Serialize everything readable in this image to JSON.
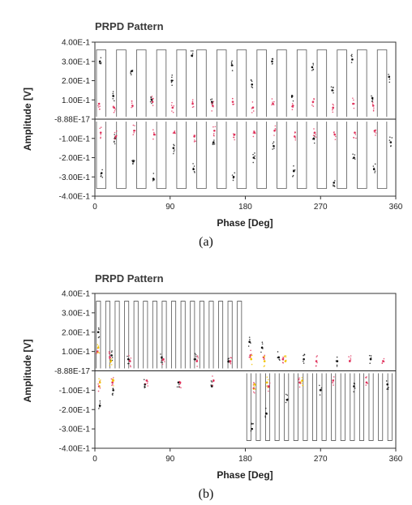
{
  "chart_data": [
    {
      "type": "scatter",
      "title": "PRPD Pattern",
      "xlabel": "Phase [Deg]",
      "ylabel": "Amplitude [V]",
      "xlim": [
        0,
        360
      ],
      "ylim": [
        -0.4,
        0.4
      ],
      "x_ticks": [
        "0",
        "90",
        "180",
        "270",
        "360"
      ],
      "y_ticks": [
        "4.00E-1",
        "3.00E-1",
        "2.00E-1",
        "1.00E-1",
        "-8.88E-17",
        "-1.00E-1",
        "-2.00E-1",
        "-3.00E-1",
        "-4.00E-1"
      ],
      "caption": "(a)",
      "series": [
        {
          "color": "#111111",
          "values": [
            [
              6,
              0.3
            ],
            [
              8,
              -0.28
            ],
            [
              22,
              0.12
            ],
            [
              24,
              -0.1
            ],
            [
              44,
              0.25
            ],
            [
              46,
              -0.22
            ],
            [
              68,
              0.1
            ],
            [
              70,
              -0.31
            ],
            [
              92,
              0.2
            ],
            [
              94,
              -0.15
            ],
            [
              116,
              0.33
            ],
            [
              118,
              -0.26
            ],
            [
              140,
              0.09
            ],
            [
              142,
              -0.12
            ],
            [
              164,
              0.28
            ],
            [
              166,
              -0.3
            ],
            [
              188,
              0.18
            ],
            [
              190,
              -0.2
            ],
            [
              212,
              0.3
            ],
            [
              214,
              -0.14
            ],
            [
              236,
              0.12
            ],
            [
              238,
              -0.27
            ],
            [
              260,
              0.27
            ],
            [
              262,
              -0.1
            ],
            [
              284,
              0.15
            ],
            [
              286,
              -0.33
            ],
            [
              308,
              0.31
            ],
            [
              310,
              -0.2
            ],
            [
              332,
              0.11
            ],
            [
              334,
              -0.26
            ],
            [
              352,
              0.22
            ],
            [
              354,
              -0.12
            ]
          ]
        },
        {
          "color": "#e0305a",
          "values": [
            [
              5,
              0.08
            ],
            [
              7,
              -0.07
            ],
            [
              23,
              0.06
            ],
            [
              25,
              -0.09
            ],
            [
              45,
              0.07
            ],
            [
              47,
              -0.06
            ],
            [
              69,
              0.09
            ],
            [
              71,
              -0.08
            ],
            [
              93,
              0.06
            ],
            [
              95,
              -0.07
            ],
            [
              117,
              0.08
            ],
            [
              119,
              -0.09
            ],
            [
              141,
              0.07
            ],
            [
              143,
              -0.06
            ],
            [
              165,
              0.09
            ],
            [
              167,
              -0.08
            ],
            [
              189,
              0.06
            ],
            [
              191,
              -0.07
            ],
            [
              213,
              0.08
            ],
            [
              215,
              -0.06
            ],
            [
              237,
              0.07
            ],
            [
              239,
              -0.09
            ],
            [
              261,
              0.09
            ],
            [
              263,
              -0.07
            ],
            [
              285,
              0.06
            ],
            [
              287,
              -0.08
            ],
            [
              309,
              0.08
            ],
            [
              311,
              -0.07
            ],
            [
              333,
              0.07
            ],
            [
              335,
              -0.06
            ]
          ]
        }
      ]
    },
    {
      "type": "scatter",
      "title": "PRPD Pattern",
      "xlabel": "Phase [Deg]",
      "ylabel": "Amplitude [V]",
      "xlim": [
        0,
        360
      ],
      "ylim": [
        -0.4,
        0.4
      ],
      "x_ticks": [
        "0",
        "90",
        "180",
        "270",
        "360"
      ],
      "y_ticks": [
        "4.00E-1",
        "3.00E-1",
        "2.00E-1",
        "1.00E-1",
        "-8.88E-17",
        "-1.00E-1",
        "-2.00E-1",
        "-3.00E-1",
        "-4.00E-1"
      ],
      "caption": "(b)",
      "series": [
        {
          "color": "#111111",
          "values": [
            [
              4,
              0.2
            ],
            [
              6,
              -0.18
            ],
            [
              20,
              0.08
            ],
            [
              22,
              -0.1
            ],
            [
              40,
              0.06
            ],
            [
              60,
              -0.07
            ],
            [
              80,
              0.07
            ],
            [
              100,
              -0.06
            ],
            [
              120,
              0.06
            ],
            [
              140,
              -0.08
            ],
            [
              160,
              0.05
            ],
            [
              185,
              0.15
            ],
            [
              188,
              -0.3
            ],
            [
              200,
              0.12
            ],
            [
              205,
              -0.22
            ],
            [
              220,
              0.07
            ],
            [
              230,
              -0.15
            ],
            [
              250,
              0.06
            ],
            [
              270,
              -0.1
            ],
            [
              290,
              0.05
            ],
            [
              310,
              -0.08
            ],
            [
              330,
              0.06
            ],
            [
              350,
              -0.07
            ]
          ]
        },
        {
          "color": "#e0305a",
          "values": [
            [
              3,
              0.1
            ],
            [
              5,
              -0.08
            ],
            [
              18,
              0.07
            ],
            [
              21,
              -0.06
            ],
            [
              42,
              0.05
            ],
            [
              62,
              -0.05
            ],
            [
              82,
              0.06
            ],
            [
              102,
              -0.06
            ],
            [
              122,
              0.05
            ],
            [
              142,
              -0.05
            ],
            [
              162,
              0.05
            ],
            [
              186,
              0.08
            ],
            [
              190,
              -0.09
            ],
            [
              202,
              0.07
            ],
            [
              208,
              -0.08
            ],
            [
              225,
              0.06
            ],
            [
              245,
              -0.06
            ],
            [
              265,
              0.05
            ],
            [
              285,
              -0.05
            ],
            [
              305,
              0.05
            ],
            [
              325,
              -0.06
            ],
            [
              345,
              0.05
            ]
          ]
        },
        {
          "color": "#f2c200",
          "values": [
            [
              4,
              0.12
            ],
            [
              6,
              -0.06
            ],
            [
              19,
              0.05
            ],
            [
              22,
              -0.05
            ],
            [
              187,
              0.06
            ],
            [
              191,
              -0.07
            ],
            [
              203,
              0.05
            ],
            [
              206,
              -0.06
            ],
            [
              228,
              0.05
            ],
            [
              248,
              -0.05
            ]
          ]
        }
      ]
    }
  ]
}
